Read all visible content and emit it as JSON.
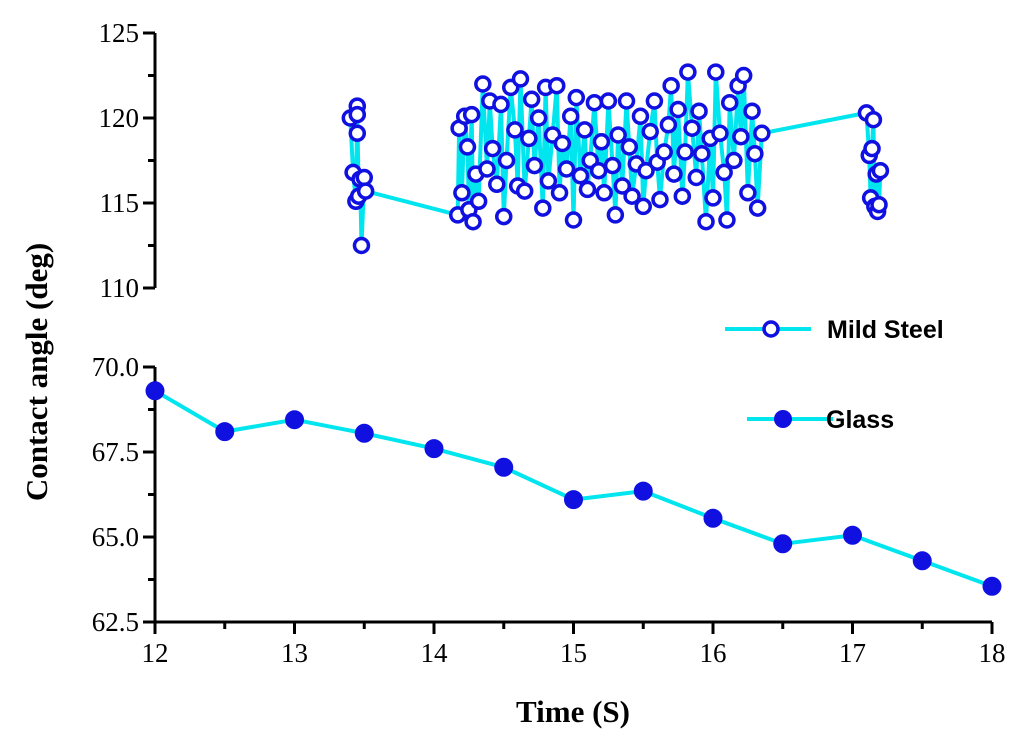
{
  "chart_data": {
    "type": "line",
    "xlabel": "Time (S)",
    "ylabel": "Contact angle (deg)",
    "x_ticks": [
      "12",
      "13",
      "14",
      "15",
      "16",
      "17",
      "18"
    ],
    "xlim": [
      12,
      18
    ],
    "upper_panel": {
      "ylim": [
        110,
        125
      ],
      "y_ticks": [
        "110",
        "115",
        "120",
        "125"
      ]
    },
    "lower_panel": {
      "ylim": [
        62.5,
        70.0
      ],
      "y_ticks": [
        "62.5",
        "65.0",
        "67.5",
        "70.0"
      ]
    },
    "legend_position": "right",
    "series": [
      {
        "name": "Mild Steel",
        "panel": "upper",
        "marker": "open-circle",
        "line_color": "#00e5ee",
        "marker_color": "#1010e0",
        "x": [
          13.4,
          13.42,
          13.44,
          13.45,
          13.45,
          13.45,
          13.46,
          13.47,
          13.48,
          13.5,
          13.51,
          14.17,
          14.18,
          14.2,
          14.22,
          14.24,
          14.25,
          14.27,
          14.28,
          14.3,
          14.32,
          14.35,
          14.38,
          14.4,
          14.42,
          14.45,
          14.48,
          14.5,
          14.52,
          14.55,
          14.58,
          14.6,
          14.62,
          14.65,
          14.68,
          14.7,
          14.72,
          14.75,
          14.78,
          14.8,
          14.82,
          14.85,
          14.88,
          14.9,
          14.92,
          14.95,
          14.98,
          15.0,
          15.02,
          15.05,
          15.08,
          15.1,
          15.12,
          15.15,
          15.18,
          15.2,
          15.22,
          15.25,
          15.28,
          15.3,
          15.32,
          15.35,
          15.38,
          15.4,
          15.42,
          15.45,
          15.48,
          15.5,
          15.52,
          15.55,
          15.58,
          15.6,
          15.62,
          15.65,
          15.68,
          15.7,
          15.72,
          15.75,
          15.78,
          15.8,
          15.82,
          15.85,
          15.88,
          15.9,
          15.92,
          15.95,
          15.98,
          16.0,
          16.02,
          16.05,
          16.08,
          16.1,
          16.12,
          16.15,
          16.18,
          16.2,
          16.22,
          16.25,
          16.28,
          16.3,
          16.32,
          16.35,
          17.1,
          17.12,
          17.13,
          17.14,
          17.15,
          17.16,
          17.17,
          17.18,
          17.19,
          17.2
        ],
        "y": [
          120.0,
          116.8,
          115.1,
          120.7,
          119.1,
          120.2,
          115.4,
          116.4,
          112.5,
          116.5,
          115.7,
          114.3,
          119.4,
          115.6,
          120.1,
          118.3,
          114.6,
          120.2,
          113.9,
          116.7,
          115.1,
          122.0,
          117.0,
          121.0,
          118.2,
          116.1,
          120.8,
          114.2,
          117.5,
          121.8,
          119.3,
          116.0,
          122.3,
          115.7,
          118.8,
          121.1,
          117.2,
          120.0,
          114.7,
          121.8,
          116.3,
          119.0,
          121.9,
          115.6,
          118.5,
          117.0,
          120.1,
          114.0,
          121.2,
          116.6,
          119.3,
          115.8,
          117.5,
          120.9,
          116.9,
          118.6,
          115.6,
          121.0,
          117.2,
          114.3,
          119.0,
          116.0,
          121.0,
          118.3,
          115.4,
          117.3,
          120.1,
          114.8,
          116.9,
          119.2,
          121.0,
          117.4,
          115.2,
          118.0,
          119.6,
          121.9,
          116.7,
          120.5,
          115.4,
          118.0,
          122.7,
          119.4,
          116.5,
          120.4,
          117.9,
          113.9,
          118.8,
          115.3,
          122.7,
          119.1,
          116.8,
          114.0,
          120.9,
          117.5,
          121.9,
          118.9,
          122.5,
          115.6,
          120.4,
          117.9,
          114.7,
          119.1,
          120.3,
          117.8,
          115.3,
          118.2,
          119.9,
          114.8,
          116.7,
          114.5,
          114.9,
          116.9
        ]
      },
      {
        "name": "Glass",
        "panel": "lower",
        "marker": "filled-circle",
        "line_color": "#00e5ee",
        "marker_color": "#1010e0",
        "x": [
          12.0,
          12.5,
          13.0,
          13.5,
          14.0,
          14.5,
          15.0,
          15.5,
          16.0,
          16.5,
          17.0,
          17.5,
          18.0
        ],
        "y": [
          69.3,
          68.1,
          68.45,
          68.05,
          67.6,
          67.05,
          66.1,
          66.35,
          65.55,
          64.8,
          65.05,
          64.3,
          63.55
        ]
      }
    ]
  }
}
